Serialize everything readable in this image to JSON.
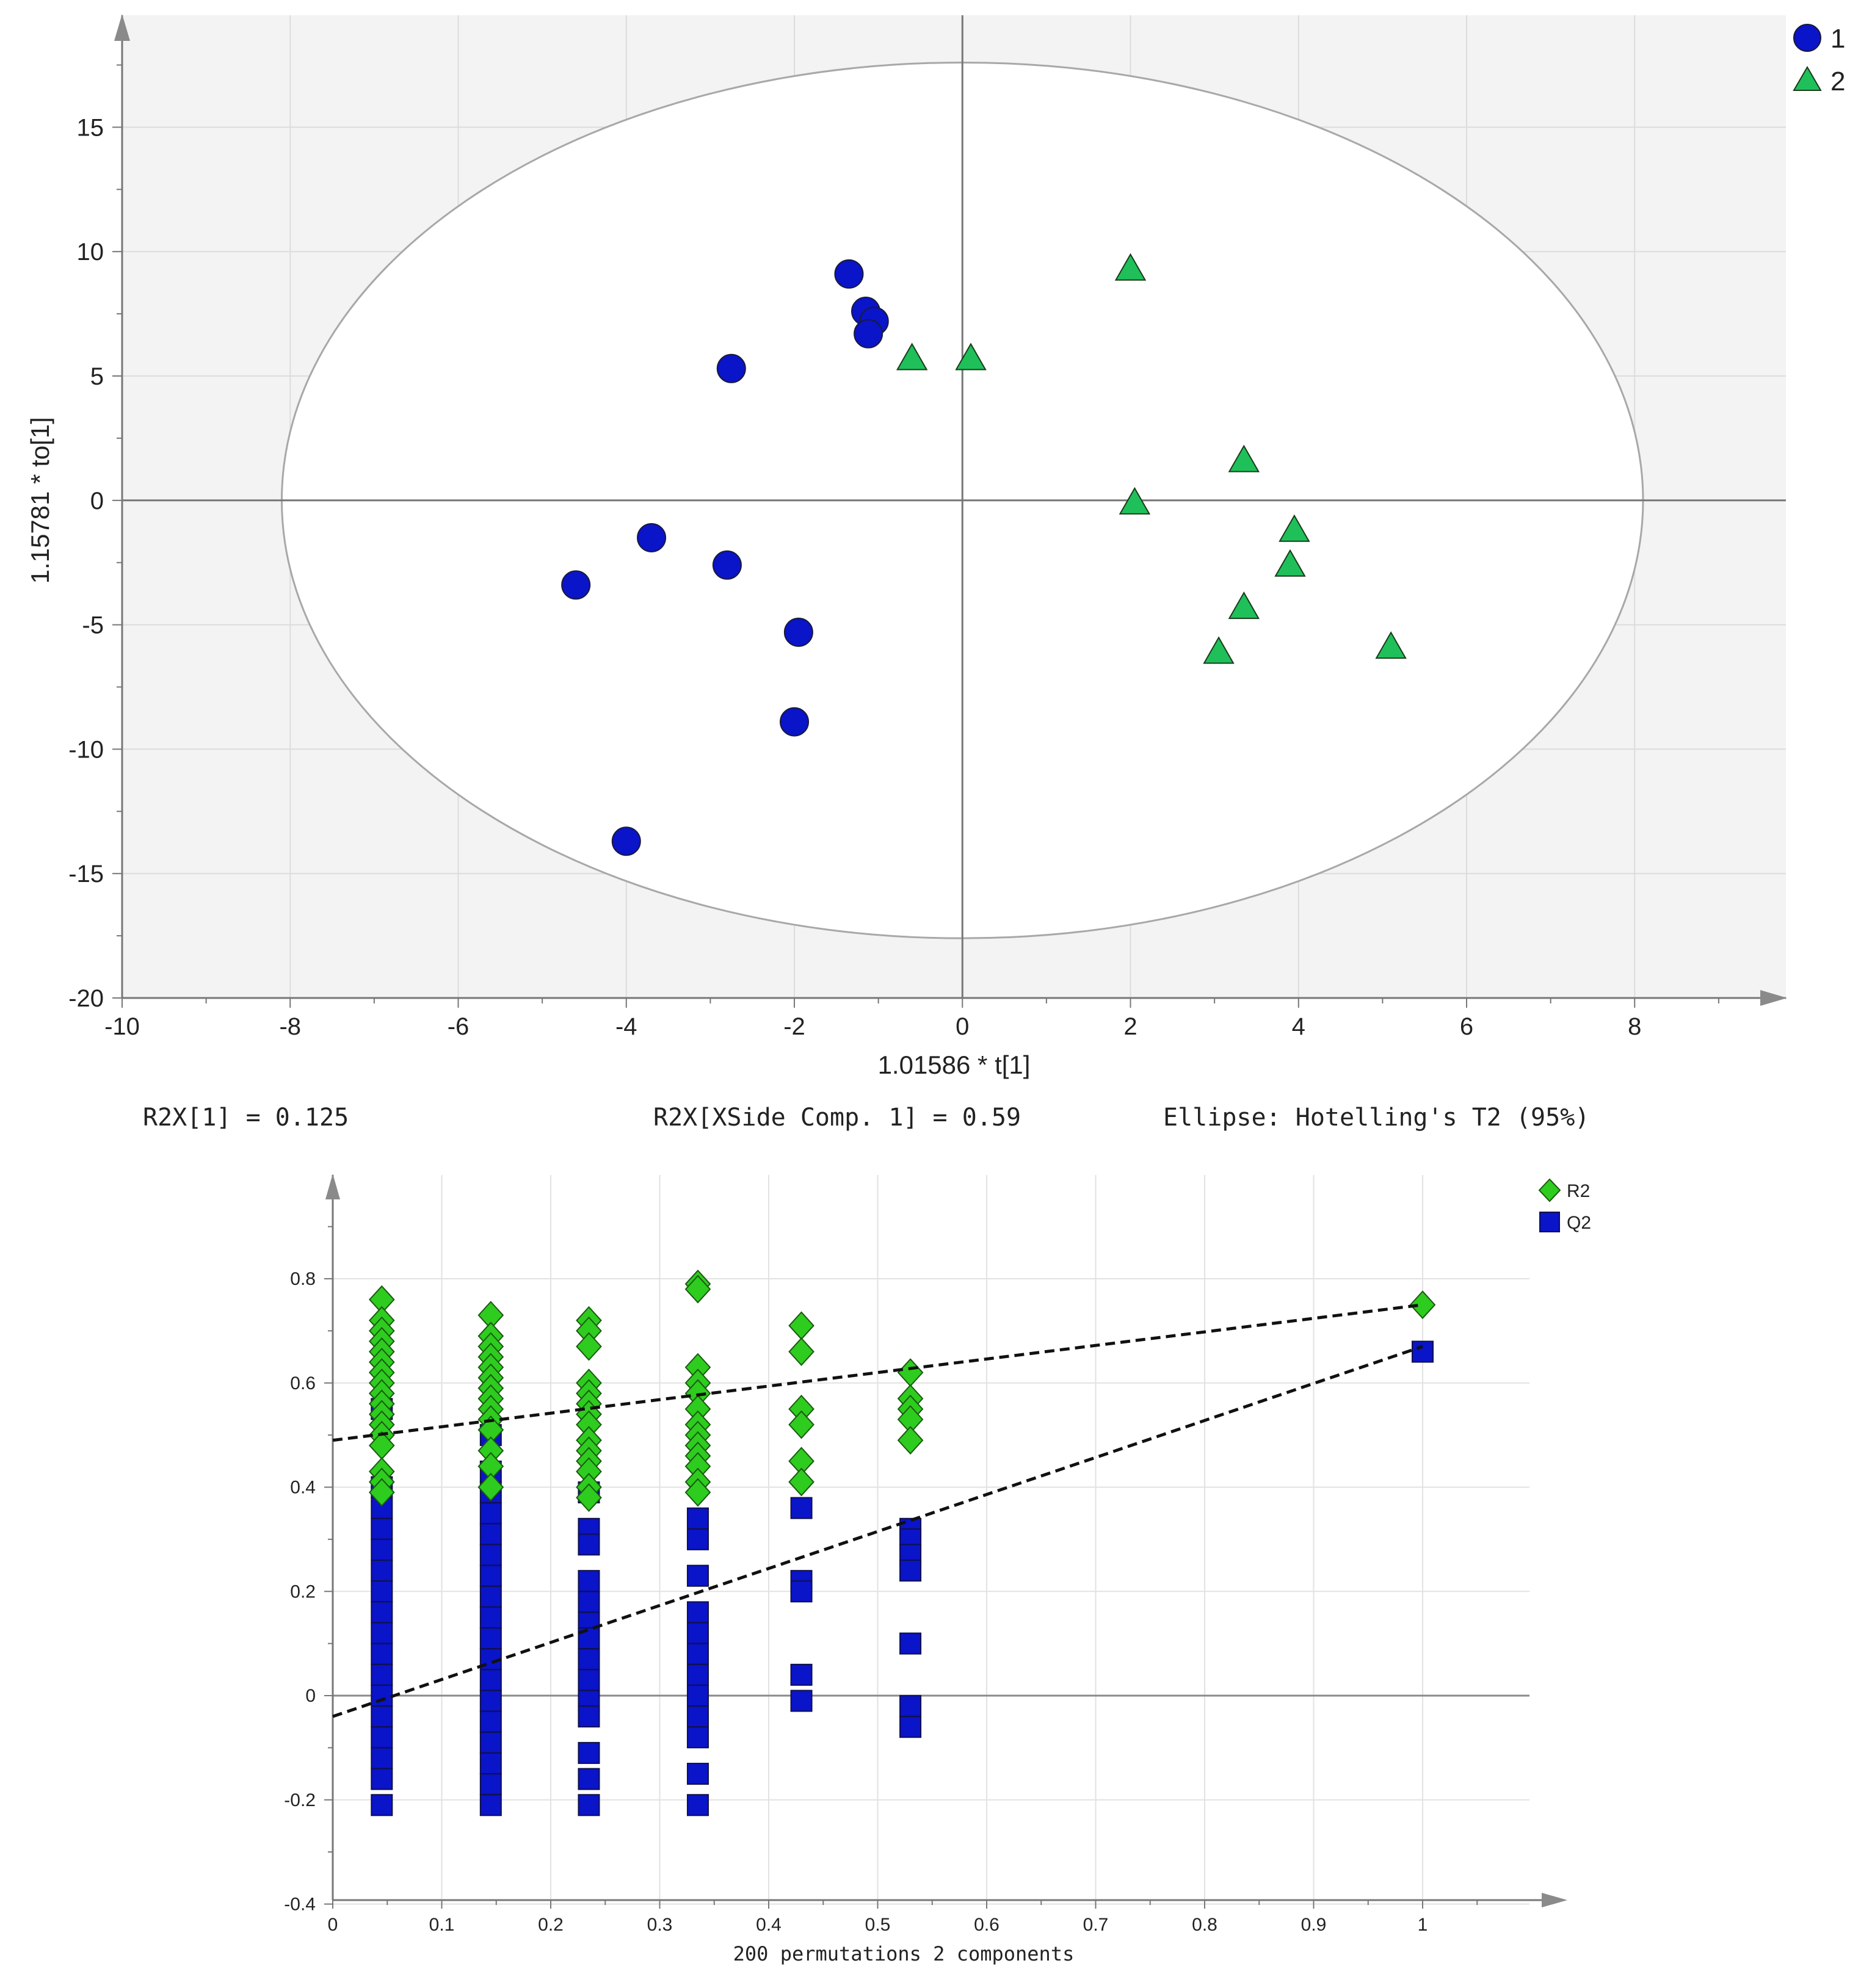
{
  "chart_data": [
    {
      "type": "scatter",
      "title": "",
      "xlabel": "1.01586 * t[1]",
      "ylabel": "1.15781 * to[1]",
      "xlim": [
        -10,
        9.8
      ],
      "ylim": [
        -20,
        19.5
      ],
      "x_ticks": [
        "-10",
        "-8",
        "-6",
        "-4",
        "-2",
        "0",
        "2",
        "4",
        "6",
        "8"
      ],
      "y_ticks": [
        "15",
        "10",
        "5",
        "0",
        "-5",
        "-10",
        "-15",
        "-20"
      ],
      "legend_position": "top-right",
      "ellipse": {
        "label": "Hotelling's T2 (95%)",
        "center": [
          0,
          0
        ],
        "semi_axes": [
          8.1,
          17.6
        ]
      },
      "series": [
        {
          "name": "1",
          "marker": "circle",
          "color": "#0a14c8",
          "points": [
            [
              -1.35,
              9.1
            ],
            [
              -1.15,
              7.6
            ],
            [
              -1.05,
              7.2
            ],
            [
              -1.12,
              6.7
            ],
            [
              -2.75,
              5.3
            ],
            [
              -3.7,
              -1.5
            ],
            [
              -4.6,
              -3.4
            ],
            [
              -2.8,
              -2.6
            ],
            [
              -1.95,
              -5.3
            ],
            [
              -2.0,
              -8.9
            ],
            [
              -4.0,
              -13.7
            ]
          ]
        },
        {
          "name": "2",
          "marker": "triangle",
          "color": "#1fc05a",
          "points": [
            [
              2.0,
              9.3
            ],
            [
              -0.6,
              5.7
            ],
            [
              0.1,
              5.7
            ],
            [
              3.35,
              1.6
            ],
            [
              2.05,
              -0.1
            ],
            [
              3.95,
              -1.2
            ],
            [
              3.9,
              -2.6
            ],
            [
              3.35,
              -4.3
            ],
            [
              5.1,
              -5.9
            ],
            [
              3.05,
              -6.1
            ]
          ]
        }
      ],
      "annotations": [
        "R2X[1] = 0.125",
        "R2X[XSide Comp. 1] = 0.59",
        "Ellipse: Hotelling's T2 (95%)"
      ]
    },
    {
      "type": "scatter",
      "title": "",
      "xlabel": "200 permutations 2 components",
      "ylabel": "",
      "xlim": [
        0,
        1.1
      ],
      "ylim": [
        -0.4,
        0.96
      ],
      "x_ticks": [
        "0",
        "0.1",
        "0.2",
        "0.3",
        "0.4",
        "0.5",
        "0.6",
        "0.7",
        "0.8",
        "0.9",
        "1"
      ],
      "y_ticks": [
        "0.8",
        "0.6",
        "0.4",
        "0.2",
        "0",
        "-0.2",
        "-0.4"
      ],
      "legend_position": "top-right",
      "regression_lines": [
        {
          "name": "R2",
          "x": [
            0,
            1.0
          ],
          "y": [
            0.49,
            0.75
          ]
        },
        {
          "name": "Q2",
          "x": [
            0,
            1.0
          ],
          "y": [
            -0.04,
            0.67
          ]
        }
      ],
      "series": [
        {
          "name": "R2",
          "marker": "diamond",
          "color": "#2ecc1f",
          "points": [
            [
              0.045,
              0.76
            ],
            [
              0.045,
              0.72
            ],
            [
              0.045,
              0.7
            ],
            [
              0.045,
              0.68
            ],
            [
              0.045,
              0.66
            ],
            [
              0.045,
              0.64
            ],
            [
              0.045,
              0.62
            ],
            [
              0.045,
              0.6
            ],
            [
              0.045,
              0.58
            ],
            [
              0.045,
              0.56
            ],
            [
              0.045,
              0.54
            ],
            [
              0.045,
              0.52
            ],
            [
              0.045,
              0.5
            ],
            [
              0.045,
              0.48
            ],
            [
              0.045,
              0.43
            ],
            [
              0.045,
              0.41
            ],
            [
              0.045,
              0.39
            ],
            [
              0.145,
              0.73
            ],
            [
              0.145,
              0.69
            ],
            [
              0.145,
              0.67
            ],
            [
              0.145,
              0.65
            ],
            [
              0.145,
              0.63
            ],
            [
              0.145,
              0.61
            ],
            [
              0.145,
              0.59
            ],
            [
              0.145,
              0.57
            ],
            [
              0.145,
              0.55
            ],
            [
              0.145,
              0.53
            ],
            [
              0.145,
              0.51
            ],
            [
              0.145,
              0.47
            ],
            [
              0.145,
              0.44
            ],
            [
              0.145,
              0.4
            ],
            [
              0.235,
              0.72
            ],
            [
              0.235,
              0.7
            ],
            [
              0.235,
              0.67
            ],
            [
              0.235,
              0.6
            ],
            [
              0.235,
              0.58
            ],
            [
              0.235,
              0.56
            ],
            [
              0.235,
              0.54
            ],
            [
              0.235,
              0.52
            ],
            [
              0.235,
              0.49
            ],
            [
              0.235,
              0.47
            ],
            [
              0.235,
              0.45
            ],
            [
              0.235,
              0.43
            ],
            [
              0.235,
              0.4
            ],
            [
              0.235,
              0.38
            ],
            [
              0.335,
              0.79
            ],
            [
              0.335,
              0.78
            ],
            [
              0.335,
              0.63
            ],
            [
              0.335,
              0.6
            ],
            [
              0.335,
              0.58
            ],
            [
              0.335,
              0.55
            ],
            [
              0.335,
              0.52
            ],
            [
              0.335,
              0.5
            ],
            [
              0.335,
              0.48
            ],
            [
              0.335,
              0.46
            ],
            [
              0.335,
              0.44
            ],
            [
              0.335,
              0.41
            ],
            [
              0.335,
              0.39
            ],
            [
              0.43,
              0.71
            ],
            [
              0.43,
              0.66
            ],
            [
              0.43,
              0.55
            ],
            [
              0.43,
              0.52
            ],
            [
              0.43,
              0.45
            ],
            [
              0.43,
              0.41
            ],
            [
              0.53,
              0.62
            ],
            [
              0.53,
              0.57
            ],
            [
              0.53,
              0.55
            ],
            [
              0.53,
              0.53
            ],
            [
              0.53,
              0.49
            ],
            [
              1.0,
              0.75
            ]
          ]
        },
        {
          "name": "Q2",
          "marker": "square",
          "color": "#0a14c8",
          "points": [
            [
              0.045,
              0.55
            ],
            [
              0.045,
              0.4
            ],
            [
              0.045,
              0.36
            ],
            [
              0.045,
              0.32
            ],
            [
              0.045,
              0.28
            ],
            [
              0.045,
              0.24
            ],
            [
              0.045,
              0.2
            ],
            [
              0.045,
              0.16
            ],
            [
              0.045,
              0.12
            ],
            [
              0.045,
              0.08
            ],
            [
              0.045,
              0.04
            ],
            [
              0.045,
              0.0
            ],
            [
              0.045,
              -0.04
            ],
            [
              0.045,
              -0.08
            ],
            [
              0.045,
              -0.12
            ],
            [
              0.045,
              -0.16
            ],
            [
              0.045,
              -0.21
            ],
            [
              0.145,
              0.5
            ],
            [
              0.145,
              0.43
            ],
            [
              0.145,
              0.39
            ],
            [
              0.145,
              0.35
            ],
            [
              0.145,
              0.31
            ],
            [
              0.145,
              0.27
            ],
            [
              0.145,
              0.23
            ],
            [
              0.145,
              0.19
            ],
            [
              0.145,
              0.15
            ],
            [
              0.145,
              0.11
            ],
            [
              0.145,
              0.07
            ],
            [
              0.145,
              0.03
            ],
            [
              0.145,
              -0.01
            ],
            [
              0.145,
              -0.05
            ],
            [
              0.145,
              -0.09
            ],
            [
              0.145,
              -0.13
            ],
            [
              0.145,
              -0.17
            ],
            [
              0.145,
              -0.21
            ],
            [
              0.235,
              0.39
            ],
            [
              0.235,
              0.32
            ],
            [
              0.235,
              0.29
            ],
            [
              0.235,
              0.22
            ],
            [
              0.235,
              0.18
            ],
            [
              0.235,
              0.14
            ],
            [
              0.235,
              0.11
            ],
            [
              0.235,
              0.07
            ],
            [
              0.235,
              0.03
            ],
            [
              0.235,
              -0.01
            ],
            [
              0.235,
              -0.04
            ],
            [
              0.235,
              -0.11
            ],
            [
              0.235,
              -0.16
            ],
            [
              0.235,
              -0.21
            ],
            [
              0.335,
              0.34
            ],
            [
              0.335,
              0.3
            ],
            [
              0.335,
              0.23
            ],
            [
              0.335,
              0.16
            ],
            [
              0.335,
              0.12
            ],
            [
              0.335,
              0.08
            ],
            [
              0.335,
              0.04
            ],
            [
              0.335,
              0.0
            ],
            [
              0.335,
              -0.04
            ],
            [
              0.335,
              -0.08
            ],
            [
              0.335,
              -0.15
            ],
            [
              0.335,
              -0.21
            ],
            [
              0.43,
              0.36
            ],
            [
              0.43,
              0.22
            ],
            [
              0.43,
              0.2
            ],
            [
              0.43,
              0.04
            ],
            [
              0.43,
              -0.01
            ],
            [
              0.53,
              0.32
            ],
            [
              0.53,
              0.3
            ],
            [
              0.53,
              0.27
            ],
            [
              0.53,
              0.24
            ],
            [
              0.53,
              0.1
            ],
            [
              0.53,
              -0.02
            ],
            [
              0.53,
              -0.06
            ],
            [
              1.0,
              0.66
            ]
          ]
        }
      ]
    }
  ]
}
